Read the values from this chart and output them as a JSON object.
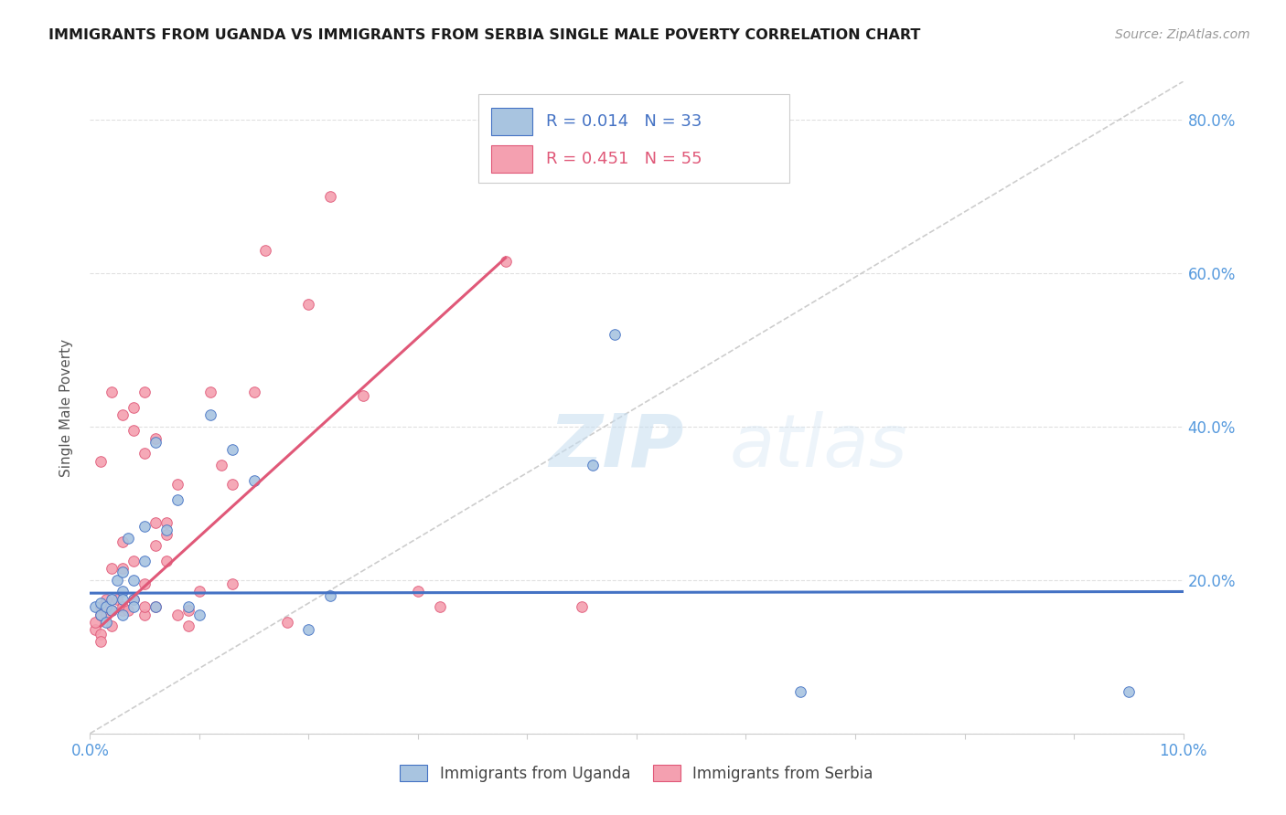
{
  "title": "IMMIGRANTS FROM UGANDA VS IMMIGRANTS FROM SERBIA SINGLE MALE POVERTY CORRELATION CHART",
  "source": "Source: ZipAtlas.com",
  "ylabel": "Single Male Poverty",
  "color_uganda": "#a8c4e0",
  "color_serbia": "#f4a0b0",
  "color_uganda_line": "#4472c4",
  "color_serbia_line": "#e05878",
  "color_diagonal": "#c8c8c8",
  "title_color": "#1a1a1a",
  "source_color": "#999999",
  "axis_label_color": "#5599dd",
  "xlim": [
    0.0,
    0.1
  ],
  "ylim": [
    0.0,
    0.85
  ],
  "uganda_x": [
    0.0005,
    0.001,
    0.001,
    0.0015,
    0.0015,
    0.002,
    0.002,
    0.0025,
    0.003,
    0.003,
    0.003,
    0.003,
    0.0035,
    0.004,
    0.004,
    0.004,
    0.005,
    0.005,
    0.006,
    0.006,
    0.007,
    0.008,
    0.009,
    0.01,
    0.011,
    0.013,
    0.015,
    0.02,
    0.022,
    0.046,
    0.048,
    0.065,
    0.095
  ],
  "uganda_y": [
    0.165,
    0.155,
    0.17,
    0.145,
    0.165,
    0.175,
    0.16,
    0.2,
    0.21,
    0.185,
    0.155,
    0.175,
    0.255,
    0.2,
    0.175,
    0.165,
    0.27,
    0.225,
    0.38,
    0.165,
    0.265,
    0.305,
    0.165,
    0.155,
    0.415,
    0.37,
    0.33,
    0.135,
    0.18,
    0.35,
    0.52,
    0.055,
    0.055
  ],
  "serbia_x": [
    0.0005,
    0.0005,
    0.001,
    0.001,
    0.001,
    0.001,
    0.001,
    0.0015,
    0.0015,
    0.002,
    0.002,
    0.002,
    0.002,
    0.0025,
    0.003,
    0.003,
    0.003,
    0.003,
    0.003,
    0.0035,
    0.004,
    0.004,
    0.004,
    0.004,
    0.005,
    0.005,
    0.005,
    0.005,
    0.005,
    0.006,
    0.006,
    0.006,
    0.006,
    0.007,
    0.007,
    0.007,
    0.008,
    0.008,
    0.009,
    0.009,
    0.01,
    0.011,
    0.012,
    0.013,
    0.013,
    0.015,
    0.016,
    0.018,
    0.02,
    0.022,
    0.025,
    0.03,
    0.032,
    0.038,
    0.045
  ],
  "serbia_y": [
    0.135,
    0.145,
    0.155,
    0.13,
    0.165,
    0.12,
    0.355,
    0.155,
    0.175,
    0.16,
    0.14,
    0.215,
    0.445,
    0.175,
    0.16,
    0.215,
    0.25,
    0.415,
    0.165,
    0.16,
    0.175,
    0.225,
    0.395,
    0.425,
    0.195,
    0.365,
    0.445,
    0.155,
    0.165,
    0.245,
    0.275,
    0.385,
    0.165,
    0.225,
    0.26,
    0.275,
    0.155,
    0.325,
    0.14,
    0.16,
    0.185,
    0.445,
    0.35,
    0.195,
    0.325,
    0.445,
    0.63,
    0.145,
    0.56,
    0.7,
    0.44,
    0.185,
    0.165,
    0.615,
    0.165
  ],
  "uganda_line_x": [
    0.0,
    0.1
  ],
  "uganda_line_y": [
    0.183,
    0.185
  ],
  "serbia_line_x": [
    0.001,
    0.038
  ],
  "serbia_line_y": [
    0.14,
    0.62
  ]
}
